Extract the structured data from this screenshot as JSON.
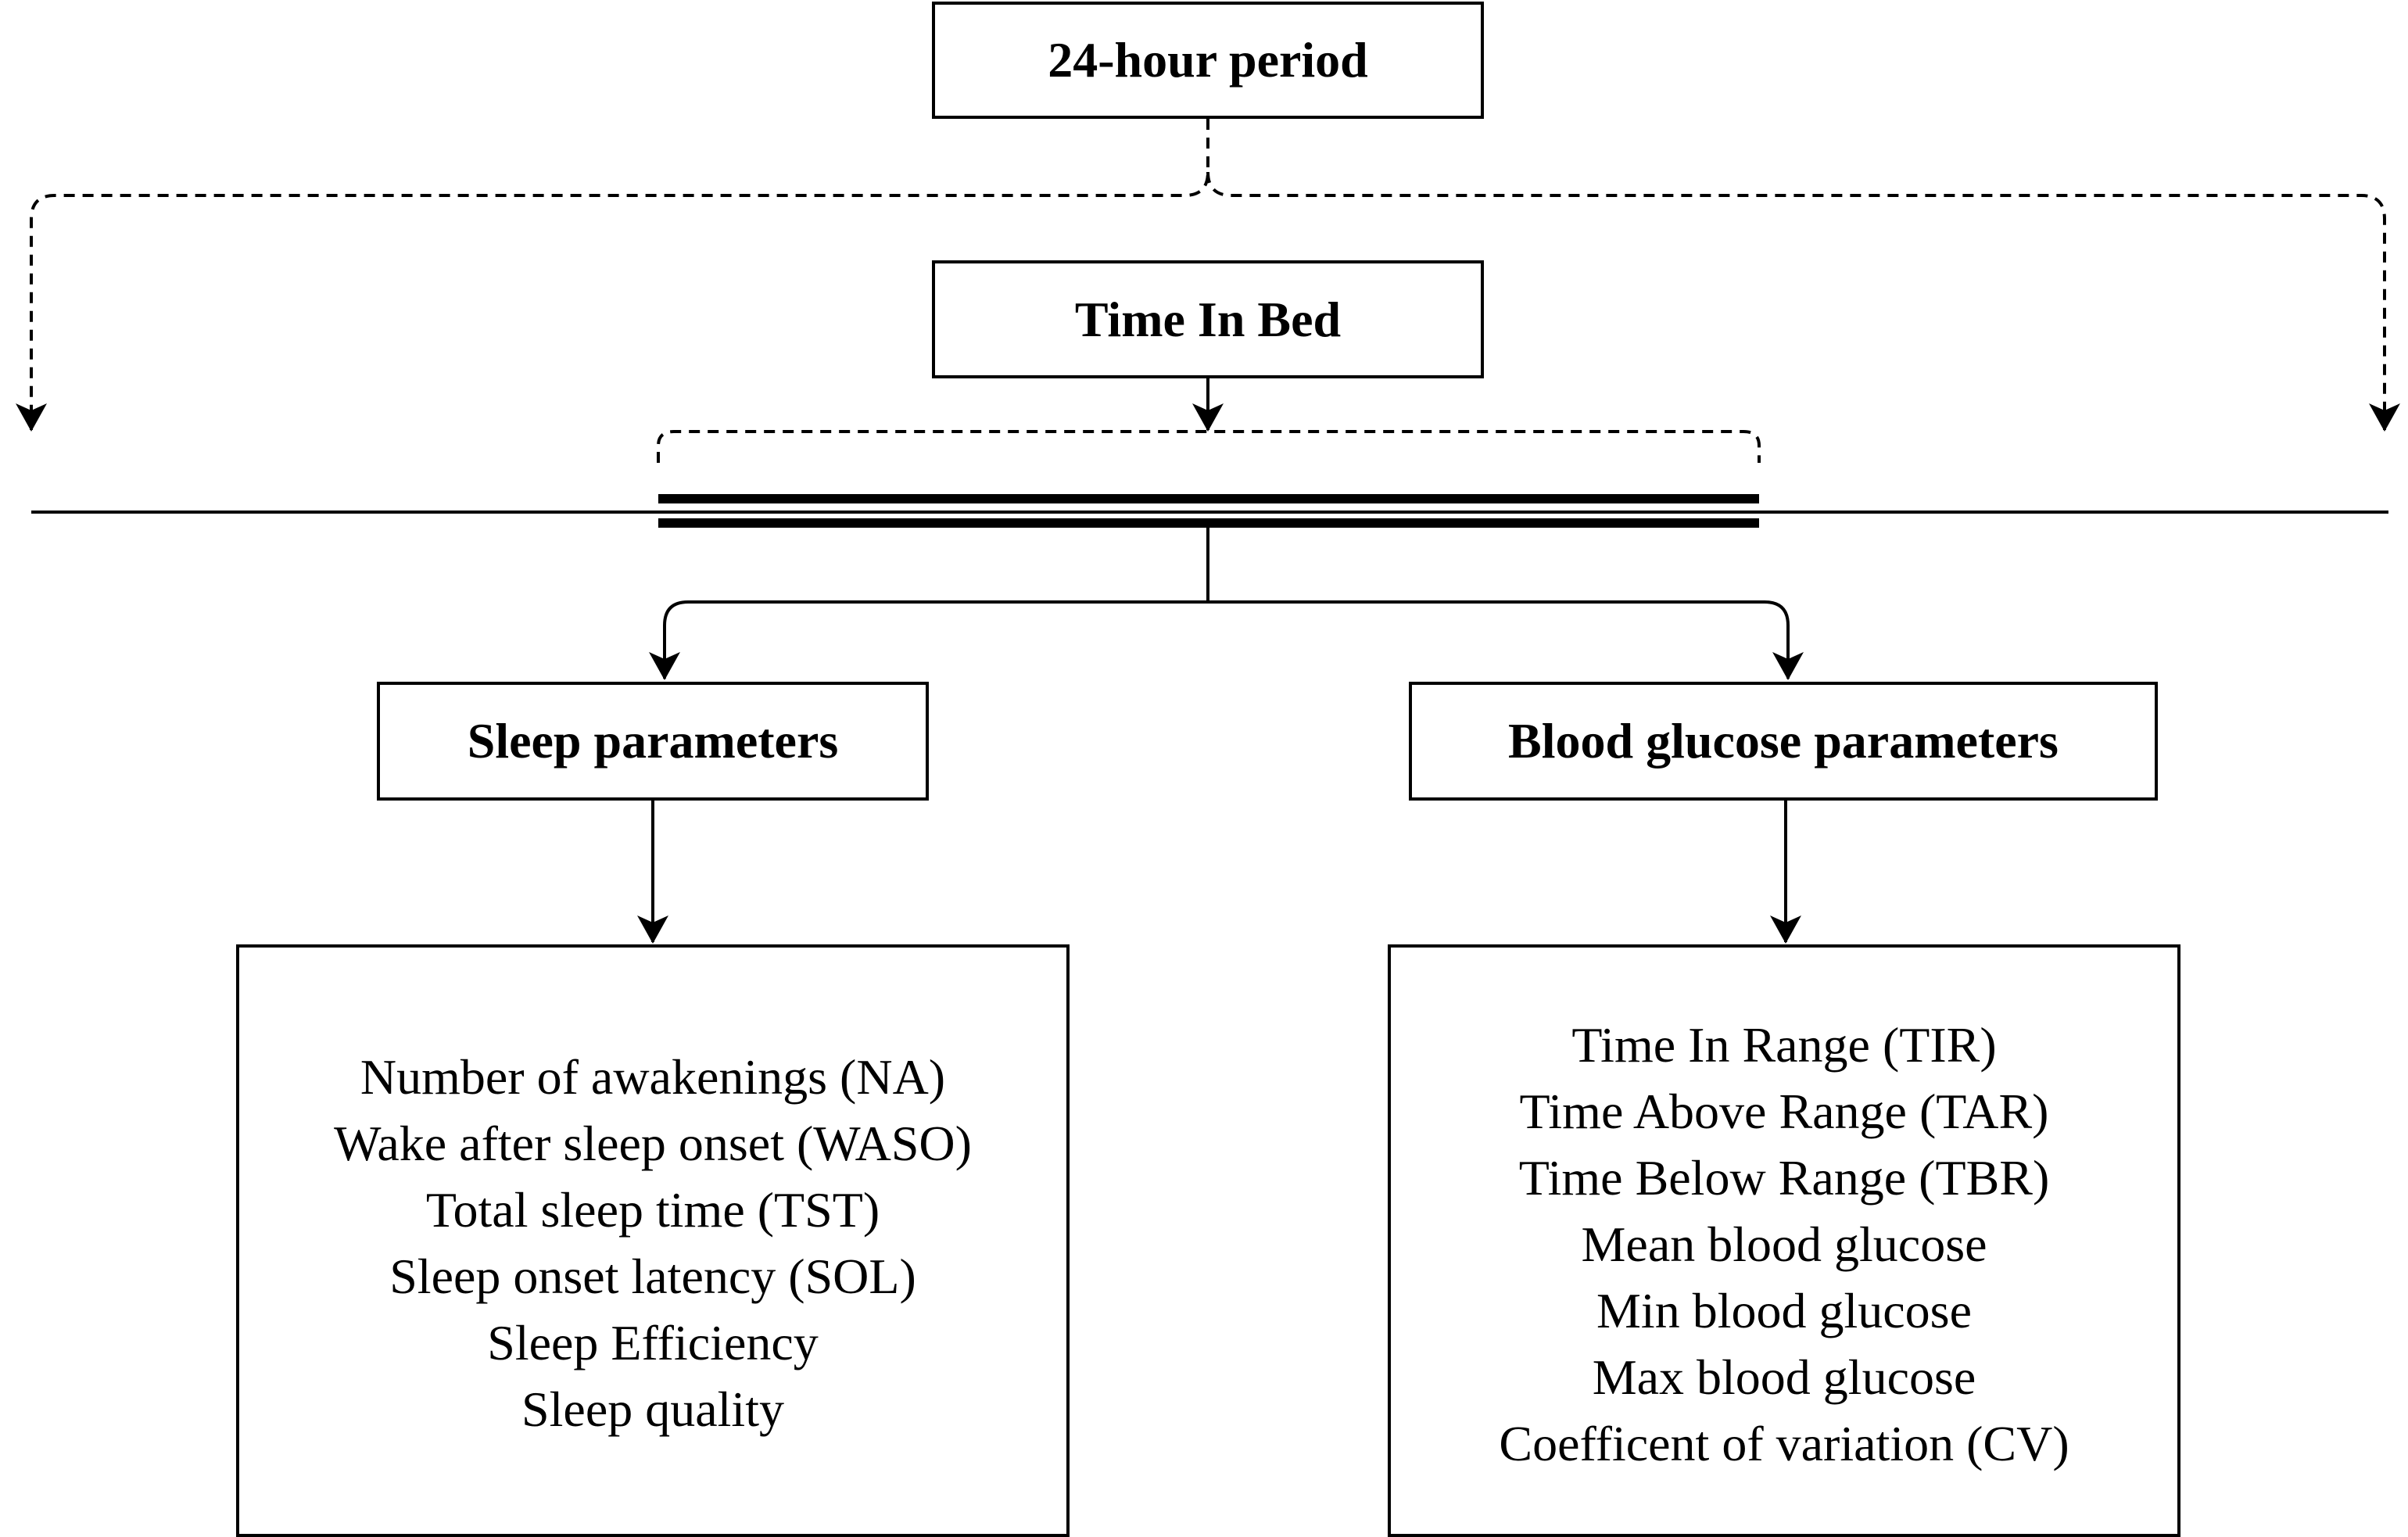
{
  "top_box": {
    "label": "24-hour period"
  },
  "time_in_bed_box": {
    "label": "Time In Bed"
  },
  "sleep_box": {
    "label": "Sleep parameters"
  },
  "glucose_box": {
    "label": "Blood glucose parameters"
  },
  "sleep_list": {
    "items": [
      "Number of awakenings (NA)",
      "Wake after sleep onset (WASO)",
      "Total sleep time (TST)",
      "Sleep onset latency (SOL)",
      "Sleep Efficiency",
      "Sleep quality"
    ]
  },
  "glucose_list": {
    "items": [
      "Time In Range (TIR)",
      "Time Above Range (TAR)",
      "Time Below Range (TBR)",
      "Mean blood glucose",
      "Min blood glucose",
      "Max blood glucose",
      "Coefficent of variation (CV)"
    ]
  }
}
